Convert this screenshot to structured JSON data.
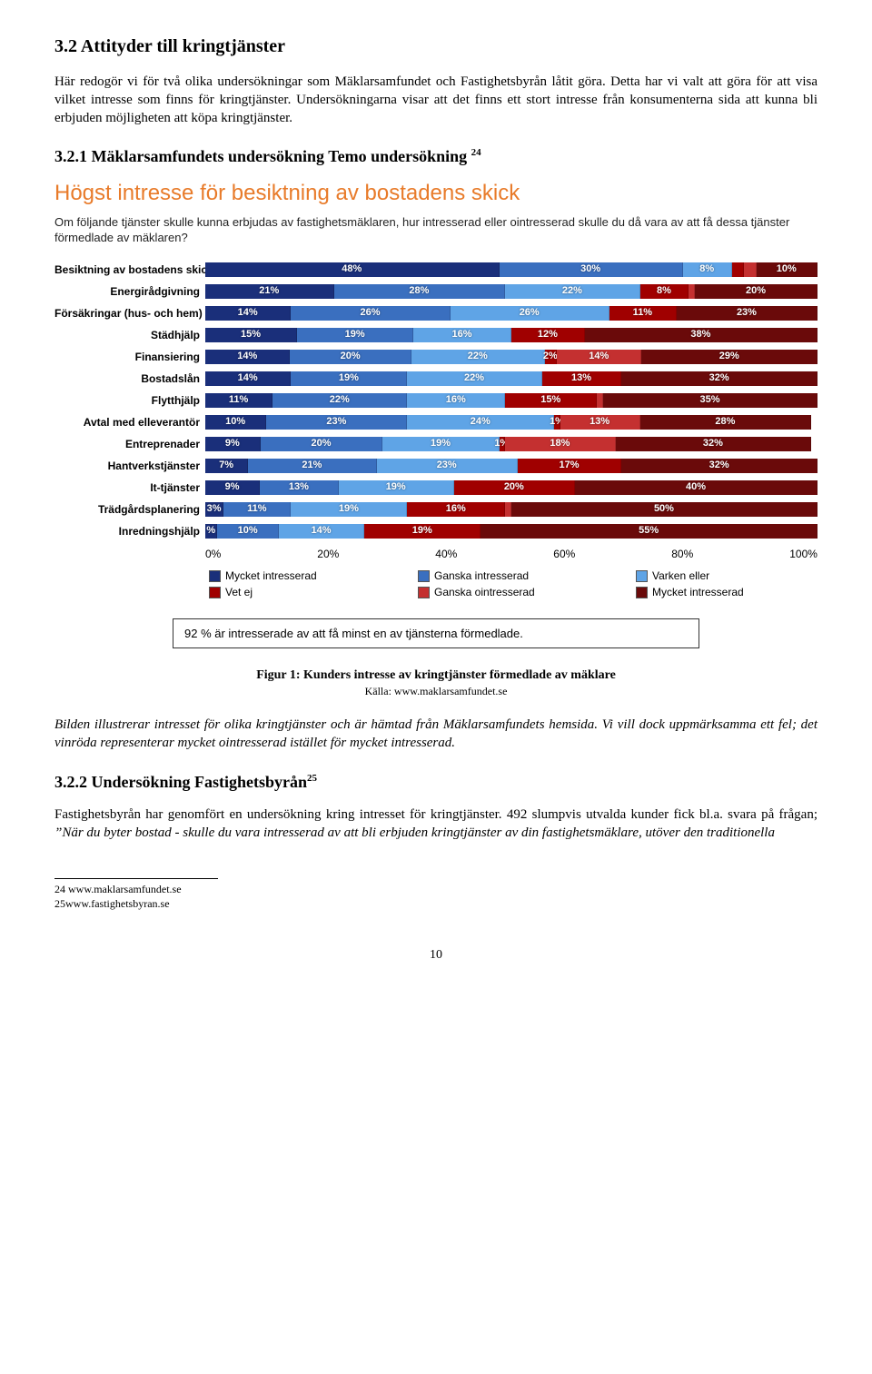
{
  "section": {
    "title": "3.2 Attityder till kringtjänster",
    "para": "Här redogör vi för två olika undersökningar som Mäklarsamfundet och Fastighetsbyrån låtit göra. Detta har vi valt att göra för att visa vilket intresse som finns för kringtjänster. Undersökningarna visar att det finns ett stort intresse från konsumenterna sida att kunna bli erbjuden möjligheten att köpa kringtjänster.",
    "sub321": "3.2.1 Mäklarsamfundets undersökning Temo undersökning",
    "sub321_sup": "24",
    "sub322": "3.2.2 Undersökning Fastighetsbyrån",
    "sub322_sup": "25",
    "para322": "Fastighetsbyrån har genomfört en undersökning kring intresset för kringtjänster. 492 slumpvis utvalda kunder fick bl.a. svara på frågan; ",
    "para322_italic": "”När du byter bostad - skulle du vara intresserad av att bli erbjuden kringtjänster av din fastighetsmäklare, utöver den traditionella"
  },
  "chart": {
    "title": "Högst intresse för besiktning av bostadens skick",
    "desc": "Om följande tjänster skulle kunna erbjudas av fastighetsmäklaren, hur intresserad eller ointresserad skulle du då vara av att få dessa tjänster förmedlade av mäklaren?",
    "colors": {
      "mycket_intresserad": "#1a2f7a",
      "ganska_intresserad": "#3a6fbf",
      "varken_eller": "#5fa4e6",
      "vet_ej": "#a00000",
      "ganska_ointresserad": "#c43030",
      "mycket_ointresserad": "#6a0a0a"
    },
    "rows": [
      {
        "label": "Besiktning av bostadens skick",
        "segs": [
          {
            "c": "mycket_intresserad",
            "v": 48,
            "t": "48%"
          },
          {
            "c": "ganska_intresserad",
            "v": 30,
            "t": "30%"
          },
          {
            "c": "varken_eller",
            "v": 8,
            "t": "8%"
          },
          {
            "c": "vet_ej",
            "v": 2,
            "t": ""
          },
          {
            "c": "ganska_ointresserad",
            "v": 2,
            "t": ""
          },
          {
            "c": "mycket_ointresserad",
            "v": 10,
            "t": "10%"
          }
        ]
      },
      {
        "label": "Energirådgivning",
        "segs": [
          {
            "c": "mycket_intresserad",
            "v": 21,
            "t": "21%"
          },
          {
            "c": "ganska_intresserad",
            "v": 28,
            "t": "28%"
          },
          {
            "c": "varken_eller",
            "v": 22,
            "t": "22%"
          },
          {
            "c": "vet_ej",
            "v": 8,
            "t": "8%"
          },
          {
            "c": "ganska_ointresserad",
            "v": 1,
            "t": ""
          },
          {
            "c": "mycket_ointresserad",
            "v": 20,
            "t": "20%"
          }
        ]
      },
      {
        "label": "Försäkringar (hus- och hem)",
        "segs": [
          {
            "c": "mycket_intresserad",
            "v": 14,
            "t": "14%"
          },
          {
            "c": "ganska_intresserad",
            "v": 26,
            "t": "26%"
          },
          {
            "c": "varken_eller",
            "v": 26,
            "t": "26%"
          },
          {
            "c": "vet_ej",
            "v": 11,
            "t": "11%"
          },
          {
            "c": "ganska_ointresserad",
            "v": 0,
            "t": ""
          },
          {
            "c": "mycket_ointresserad",
            "v": 23,
            "t": "23%"
          }
        ]
      },
      {
        "label": "Städhjälp",
        "segs": [
          {
            "c": "mycket_intresserad",
            "v": 15,
            "t": "15%"
          },
          {
            "c": "ganska_intresserad",
            "v": 19,
            "t": "19%"
          },
          {
            "c": "varken_eller",
            "v": 16,
            "t": "16%"
          },
          {
            "c": "vet_ej",
            "v": 12,
            "t": "12%"
          },
          {
            "c": "ganska_ointresserad",
            "v": 0,
            "t": ""
          },
          {
            "c": "mycket_ointresserad",
            "v": 38,
            "t": "38%"
          }
        ]
      },
      {
        "label": "Finansiering",
        "segs": [
          {
            "c": "mycket_intresserad",
            "v": 14,
            "t": "14%"
          },
          {
            "c": "ganska_intresserad",
            "v": 20,
            "t": "20%"
          },
          {
            "c": "varken_eller",
            "v": 22,
            "t": "22%"
          },
          {
            "c": "vet_ej",
            "v": 2,
            "t": "2%"
          },
          {
            "c": "ganska_ointresserad",
            "v": 14,
            "t": "14%"
          },
          {
            "c": "mycket_ointresserad",
            "v": 29,
            "t": "29%"
          }
        ]
      },
      {
        "label": "Bostadslån",
        "segs": [
          {
            "c": "mycket_intresserad",
            "v": 14,
            "t": "14%"
          },
          {
            "c": "ganska_intresserad",
            "v": 19,
            "t": "19%"
          },
          {
            "c": "varken_eller",
            "v": 22,
            "t": "22%"
          },
          {
            "c": "vet_ej",
            "v": 13,
            "t": "13%"
          },
          {
            "c": "ganska_ointresserad",
            "v": 0,
            "t": ""
          },
          {
            "c": "mycket_ointresserad",
            "v": 32,
            "t": "32%"
          }
        ]
      },
      {
        "label": "Flytthjälp",
        "segs": [
          {
            "c": "mycket_intresserad",
            "v": 11,
            "t": "11%"
          },
          {
            "c": "ganska_intresserad",
            "v": 22,
            "t": "22%"
          },
          {
            "c": "varken_eller",
            "v": 16,
            "t": "16%"
          },
          {
            "c": "vet_ej",
            "v": 15,
            "t": "15%"
          },
          {
            "c": "ganska_ointresserad",
            "v": 1,
            "t": ""
          },
          {
            "c": "mycket_ointresserad",
            "v": 35,
            "t": "35%"
          }
        ]
      },
      {
        "label": "Avtal med elleverantör",
        "segs": [
          {
            "c": "mycket_intresserad",
            "v": 10,
            "t": "10%"
          },
          {
            "c": "ganska_intresserad",
            "v": 23,
            "t": "23%"
          },
          {
            "c": "varken_eller",
            "v": 24,
            "t": "24%"
          },
          {
            "c": "vet_ej",
            "v": 1,
            "t": "1%"
          },
          {
            "c": "ganska_ointresserad",
            "v": 13,
            "t": "13%"
          },
          {
            "c": "mycket_ointresserad",
            "v": 28,
            "t": "28%"
          }
        ]
      },
      {
        "label": "Entreprenader",
        "segs": [
          {
            "c": "mycket_intresserad",
            "v": 9,
            "t": "9%"
          },
          {
            "c": "ganska_intresserad",
            "v": 20,
            "t": "20%"
          },
          {
            "c": "varken_eller",
            "v": 19,
            "t": "19%"
          },
          {
            "c": "vet_ej",
            "v": 1,
            "t": "1%"
          },
          {
            "c": "ganska_ointresserad",
            "v": 18,
            "t": "18%"
          },
          {
            "c": "mycket_ointresserad",
            "v": 32,
            "t": "32%"
          }
        ]
      },
      {
        "label": "Hantverkstjänster",
        "segs": [
          {
            "c": "mycket_intresserad",
            "v": 7,
            "t": "7%"
          },
          {
            "c": "ganska_intresserad",
            "v": 21,
            "t": "21%"
          },
          {
            "c": "varken_eller",
            "v": 23,
            "t": "23%"
          },
          {
            "c": "vet_ej",
            "v": 17,
            "t": "17%"
          },
          {
            "c": "ganska_ointresserad",
            "v": 0,
            "t": ""
          },
          {
            "c": "mycket_ointresserad",
            "v": 32,
            "t": "32%"
          }
        ]
      },
      {
        "label": "It-tjänster",
        "segs": [
          {
            "c": "mycket_intresserad",
            "v": 9,
            "t": "9%"
          },
          {
            "c": "ganska_intresserad",
            "v": 13,
            "t": "13%"
          },
          {
            "c": "varken_eller",
            "v": 19,
            "t": "19%"
          },
          {
            "c": "vet_ej",
            "v": 20,
            "t": "20%"
          },
          {
            "c": "ganska_ointresserad",
            "v": 0,
            "t": ""
          },
          {
            "c": "mycket_ointresserad",
            "v": 40,
            "t": "40%"
          }
        ]
      },
      {
        "label": "Trädgårdsplanering",
        "segs": [
          {
            "c": "mycket_intresserad",
            "v": 3,
            "t": "3%"
          },
          {
            "c": "ganska_intresserad",
            "v": 11,
            "t": "11%"
          },
          {
            "c": "varken_eller",
            "v": 19,
            "t": "19%"
          },
          {
            "c": "vet_ej",
            "v": 16,
            "t": "16%"
          },
          {
            "c": "ganska_ointresserad",
            "v": 1,
            "t": ""
          },
          {
            "c": "mycket_ointresserad",
            "v": 50,
            "t": "50%"
          }
        ]
      },
      {
        "label": "Inredningshjälp",
        "segs": [
          {
            "c": "mycket_intresserad",
            "v": 2,
            "t": "%"
          },
          {
            "c": "ganska_intresserad",
            "v": 10,
            "t": "10%"
          },
          {
            "c": "varken_eller",
            "v": 14,
            "t": "14%"
          },
          {
            "c": "vet_ej",
            "v": 19,
            "t": "19%"
          },
          {
            "c": "ganska_ointresserad",
            "v": 0,
            "t": ""
          },
          {
            "c": "mycket_ointresserad",
            "v": 55,
            "t": "55%"
          }
        ]
      }
    ],
    "axis": [
      "0%",
      "20%",
      "40%",
      "60%",
      "80%",
      "100%"
    ],
    "legend": [
      {
        "c": "mycket_intresserad",
        "t": "Mycket intresserad"
      },
      {
        "c": "ganska_intresserad",
        "t": "Ganska intresserad"
      },
      {
        "c": "varken_eller",
        "t": "Varken eller"
      },
      {
        "c": "vet_ej",
        "t": "Vet ej"
      },
      {
        "c": "ganska_ointresserad",
        "t": "Ganska ointresserad"
      },
      {
        "c": "mycket_ointresserad",
        "t": "Mycket intresserad"
      }
    ],
    "footnote": "92 % är intresserade av att få minst en av tjänsterna förmedlade."
  },
  "figure": {
    "caption": "Figur 1: Kunders intresse av kringtjänster förmedlade av mäklare",
    "source": "Källa: www.maklarsamfundet.se"
  },
  "imagedesc": "Bilden illustrerar intresset för olika kringtjänster och är hämtad från Mäklarsamfundets hemsida. Vi vill dock uppmärksamma ett fel; det vinröda representerar mycket ointresserad istället för mycket intresserad.",
  "footrefs": {
    "r24": "24 www.maklarsamfundet.se",
    "r25": "25www.fastighetsbyran.se"
  },
  "pagenum": "10"
}
